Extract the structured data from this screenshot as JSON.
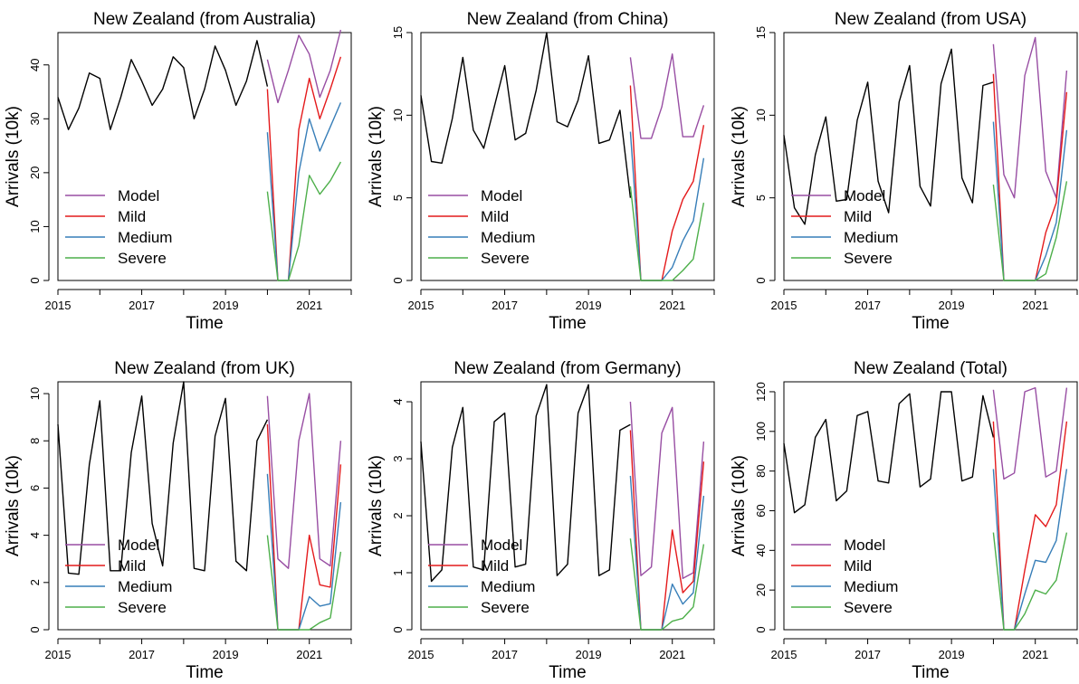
{
  "chart_data": [
    {
      "type": "line",
      "title": "New Zealand (from Australia)",
      "xlabel": "Time",
      "ylabel": "Arrivals (10k)",
      "xlim": [
        2015,
        2022
      ],
      "ylim": [
        0,
        46
      ],
      "xticks": [
        2015,
        2017,
        2019,
        2021
      ],
      "yticks": [
        0,
        10,
        20,
        30,
        40
      ],
      "legend": {
        "placement": "bottom-left",
        "entries": [
          "Model",
          "Mild",
          "Medium",
          "Severe"
        ]
      },
      "colors": {
        "history": "#000000",
        "Model": "#984EA3",
        "Mild": "#E41A1C",
        "Medium": "#377EB8",
        "Severe": "#4DAF4A"
      },
      "history": {
        "x": [
          2015.0,
          2015.25,
          2015.5,
          2015.75,
          2016.0,
          2016.25,
          2016.5,
          2016.75,
          2017.0,
          2017.25,
          2017.5,
          2017.75,
          2018.0,
          2018.25,
          2018.5,
          2018.75,
          2019.0,
          2019.25,
          2019.5,
          2019.75,
          2020.0
        ],
        "y": [
          34,
          28,
          32,
          38.5,
          37.5,
          28,
          34,
          41,
          37,
          32.5,
          35.5,
          41.5,
          39.5,
          30,
          35.5,
          43.5,
          39,
          32.5,
          37,
          44.5,
          36
        ]
      },
      "series": [
        {
          "name": "Model",
          "x": [
            2020.0,
            2020.25,
            2020.5,
            2020.75,
            2021.0,
            2021.25,
            2021.5,
            2021.75
          ],
          "y": [
            41,
            33,
            39,
            45.5,
            42,
            34,
            39,
            46.5
          ]
        },
        {
          "name": "Mild",
          "x": [
            2020.0,
            2020.25,
            2020.5,
            2020.75,
            2021.0,
            2021.25,
            2021.5,
            2021.75
          ],
          "y": [
            35.5,
            0,
            0,
            28,
            37.5,
            30,
            35.5,
            41.5
          ]
        },
        {
          "name": "Medium",
          "x": [
            2020.0,
            2020.25,
            2020.5,
            2020.75,
            2021.0,
            2021.25,
            2021.5,
            2021.75
          ],
          "y": [
            27.5,
            0,
            0,
            20,
            30,
            24,
            28.5,
            33
          ]
        },
        {
          "name": "Severe",
          "x": [
            2020.0,
            2020.25,
            2020.5,
            2020.75,
            2021.0,
            2021.25,
            2021.5,
            2021.75
          ],
          "y": [
            16.5,
            0,
            0,
            6.5,
            19.5,
            16,
            18.5,
            22
          ]
        }
      ]
    },
    {
      "type": "line",
      "title": "New Zealand (from China)",
      "xlabel": "Time",
      "ylabel": "Arrivals (10k)",
      "xlim": [
        2015,
        2022
      ],
      "ylim": [
        0,
        15
      ],
      "xticks": [
        2015,
        2017,
        2019,
        2021
      ],
      "yticks": [
        0,
        5,
        10,
        15
      ],
      "legend": {
        "placement": "bottom-left",
        "entries": [
          "Model",
          "Mild",
          "Medium",
          "Severe"
        ]
      },
      "colors": {
        "history": "#000000",
        "Model": "#984EA3",
        "Mild": "#E41A1C",
        "Medium": "#377EB8",
        "Severe": "#4DAF4A"
      },
      "history": {
        "x": [
          2015.0,
          2015.25,
          2015.5,
          2015.75,
          2016.0,
          2016.25,
          2016.5,
          2016.75,
          2017.0,
          2017.25,
          2017.5,
          2017.75,
          2018.0,
          2018.25,
          2018.5,
          2018.75,
          2019.0,
          2019.25,
          2019.5,
          2019.75,
          2020.0
        ],
        "y": [
          11.2,
          7.2,
          7.1,
          9.8,
          13.5,
          9.1,
          8.0,
          10.5,
          13.0,
          8.5,
          8.9,
          11.5,
          15.0,
          9.6,
          9.3,
          10.9,
          13.6,
          8.3,
          8.5,
          10.3,
          5.0
        ]
      },
      "series": [
        {
          "name": "Model",
          "x": [
            2020.0,
            2020.25,
            2020.5,
            2020.75,
            2021.0,
            2021.25,
            2021.5,
            2021.75
          ],
          "y": [
            13.5,
            8.6,
            8.6,
            10.5,
            13.7,
            8.7,
            8.7,
            10.6
          ]
        },
        {
          "name": "Mild",
          "x": [
            2020.0,
            2020.25,
            2020.5,
            2020.75,
            2021.0,
            2021.25,
            2021.5,
            2021.75
          ],
          "y": [
            11.8,
            0,
            0,
            0,
            3.0,
            4.9,
            6.0,
            9.4
          ]
        },
        {
          "name": "Medium",
          "x": [
            2020.0,
            2020.25,
            2020.5,
            2020.75,
            2021.0,
            2021.25,
            2021.5,
            2021.75
          ],
          "y": [
            9.0,
            0,
            0,
            0,
            0.8,
            2.4,
            3.6,
            7.4
          ]
        },
        {
          "name": "Severe",
          "x": [
            2020.0,
            2020.25,
            2020.5,
            2020.75,
            2021.0,
            2021.25,
            2021.5,
            2021.75
          ],
          "y": [
            5.7,
            0,
            0,
            0,
            0,
            0.6,
            1.3,
            4.7
          ]
        }
      ]
    },
    {
      "type": "line",
      "title": "New Zealand (from USA)",
      "xlabel": "Time",
      "ylabel": "Arrivals (10k)",
      "xlim": [
        2015,
        2022
      ],
      "ylim": [
        0,
        15
      ],
      "xticks": [
        2015,
        2017,
        2019,
        2021
      ],
      "yticks": [
        0,
        5,
        10,
        15
      ],
      "legend": {
        "placement": "bottom-left",
        "entries": [
          "Model",
          "Mild",
          "Medium",
          "Severe"
        ]
      },
      "colors": {
        "history": "#000000",
        "Model": "#984EA3",
        "Mild": "#E41A1C",
        "Medium": "#377EB8",
        "Severe": "#4DAF4A"
      },
      "history": {
        "x": [
          2015.0,
          2015.25,
          2015.5,
          2015.75,
          2016.0,
          2016.25,
          2016.5,
          2016.75,
          2017.0,
          2017.25,
          2017.5,
          2017.75,
          2018.0,
          2018.25,
          2018.5,
          2018.75,
          2019.0,
          2019.25,
          2019.5,
          2019.75,
          2020.0
        ],
        "y": [
          8.8,
          4.4,
          3.4,
          7.6,
          9.9,
          4.8,
          4.9,
          9.7,
          12.0,
          6.0,
          4.1,
          10.8,
          13.0,
          5.7,
          4.5,
          11.9,
          14.0,
          6.2,
          4.7,
          11.8,
          12.0
        ]
      },
      "series": [
        {
          "name": "Model",
          "x": [
            2020.0,
            2020.25,
            2020.5,
            2020.75,
            2021.0,
            2021.25,
            2021.5,
            2021.75
          ],
          "y": [
            14.3,
            6.4,
            5.0,
            12.4,
            14.7,
            6.6,
            5.0,
            12.7
          ]
        },
        {
          "name": "Mild",
          "x": [
            2020.0,
            2020.25,
            2020.5,
            2020.75,
            2021.0,
            2021.25,
            2021.5,
            2021.75
          ],
          "y": [
            12.5,
            0,
            0,
            0,
            0,
            2.9,
            4.7,
            11.4
          ]
        },
        {
          "name": "Medium",
          "x": [
            2020.0,
            2020.25,
            2020.5,
            2020.75,
            2021.0,
            2021.25,
            2021.5,
            2021.75
          ],
          "y": [
            9.6,
            0,
            0,
            0,
            0,
            1.5,
            3.5,
            9.1
          ]
        },
        {
          "name": "Severe",
          "x": [
            2020.0,
            2020.25,
            2020.5,
            2020.75,
            2021.0,
            2021.25,
            2021.5,
            2021.75
          ],
          "y": [
            5.8,
            0,
            0,
            0,
            0,
            0.4,
            2.6,
            6.0
          ]
        }
      ]
    },
    {
      "type": "line",
      "title": "New Zealand (from UK)",
      "xlabel": "Time",
      "ylabel": "Arrivals (10k)",
      "xlim": [
        2015,
        2022
      ],
      "ylim": [
        0,
        10.5
      ],
      "xticks": [
        2015,
        2017,
        2019,
        2021
      ],
      "yticks": [
        0,
        2,
        4,
        6,
        8,
        10
      ],
      "legend": {
        "placement": "bottom-left",
        "entries": [
          "Model",
          "Mild",
          "Medium",
          "Severe"
        ]
      },
      "colors": {
        "history": "#000000",
        "Model": "#984EA3",
        "Mild": "#E41A1C",
        "Medium": "#377EB8",
        "Severe": "#4DAF4A"
      },
      "history": {
        "x": [
          2015.0,
          2015.25,
          2015.5,
          2015.75,
          2016.0,
          2016.25,
          2016.5,
          2016.75,
          2017.0,
          2017.25,
          2017.5,
          2017.75,
          2018.0,
          2018.25,
          2018.5,
          2018.75,
          2019.0,
          2019.25,
          2019.5,
          2019.75,
          2020.0
        ],
        "y": [
          8.7,
          2.4,
          2.35,
          7.0,
          9.7,
          2.5,
          2.5,
          7.5,
          9.9,
          4.5,
          2.7,
          7.9,
          10.5,
          2.6,
          2.5,
          8.2,
          9.8,
          2.9,
          2.5,
          8.0,
          8.9
        ]
      },
      "series": [
        {
          "name": "Model",
          "x": [
            2020.0,
            2020.25,
            2020.5,
            2020.75,
            2021.0,
            2021.25,
            2021.5,
            2021.75
          ],
          "y": [
            9.9,
            3.0,
            2.6,
            8.0,
            10.0,
            3.0,
            2.7,
            8.0
          ]
        },
        {
          "name": "Mild",
          "x": [
            2020.0,
            2020.25,
            2020.5,
            2020.75,
            2021.0,
            2021.25,
            2021.5,
            2021.75
          ],
          "y": [
            8.7,
            0,
            0,
            0,
            4.0,
            1.9,
            1.8,
            7.0
          ]
        },
        {
          "name": "Medium",
          "x": [
            2020.0,
            2020.25,
            2020.5,
            2020.75,
            2021.0,
            2021.25,
            2021.5,
            2021.75
          ],
          "y": [
            6.6,
            0,
            0,
            0,
            1.4,
            1.0,
            1.1,
            5.4
          ]
        },
        {
          "name": "Severe",
          "x": [
            2020.0,
            2020.25,
            2020.5,
            2020.75,
            2021.0,
            2021.25,
            2021.5,
            2021.75
          ],
          "y": [
            4.0,
            0,
            0,
            0,
            0,
            0.3,
            0.5,
            3.3
          ]
        }
      ]
    },
    {
      "type": "line",
      "title": "New Zealand (from Germany)",
      "xlabel": "Time",
      "ylabel": "Arrivals (10k)",
      "xlim": [
        2015,
        2022
      ],
      "ylim": [
        0,
        4.35
      ],
      "xticks": [
        2015,
        2017,
        2019,
        2021
      ],
      "yticks": [
        0,
        1,
        2,
        3,
        4
      ],
      "legend": {
        "placement": "bottom-left",
        "entries": [
          "Model",
          "Mild",
          "Medium",
          "Severe"
        ]
      },
      "colors": {
        "history": "#000000",
        "Model": "#984EA3",
        "Mild": "#E41A1C",
        "Medium": "#377EB8",
        "Severe": "#4DAF4A"
      },
      "history": {
        "x": [
          2015.0,
          2015.25,
          2015.5,
          2015.75,
          2016.0,
          2016.25,
          2016.5,
          2016.75,
          2017.0,
          2017.25,
          2017.5,
          2017.75,
          2018.0,
          2018.25,
          2018.5,
          2018.75,
          2019.0,
          2019.25,
          2019.5,
          2019.75,
          2020.0
        ],
        "y": [
          3.3,
          0.85,
          1.05,
          3.2,
          3.9,
          1.1,
          1.05,
          3.65,
          3.8,
          1.1,
          1.15,
          3.75,
          4.3,
          0.95,
          1.15,
          3.8,
          4.3,
          0.95,
          1.05,
          3.5,
          3.6
        ]
      },
      "series": [
        {
          "name": "Model",
          "x": [
            2020.0,
            2020.25,
            2020.5,
            2020.75,
            2021.0,
            2021.25,
            2021.5,
            2021.75
          ],
          "y": [
            4.0,
            0.95,
            1.1,
            3.45,
            3.9,
            0.9,
            1.0,
            3.3
          ]
        },
        {
          "name": "Mild",
          "x": [
            2020.0,
            2020.25,
            2020.5,
            2020.75,
            2021.0,
            2021.25,
            2021.5,
            2021.75
          ],
          "y": [
            3.5,
            0,
            0,
            0,
            1.75,
            0.65,
            0.85,
            2.95
          ]
        },
        {
          "name": "Medium",
          "x": [
            2020.0,
            2020.25,
            2020.5,
            2020.75,
            2021.0,
            2021.25,
            2021.5,
            2021.75
          ],
          "y": [
            2.7,
            0,
            0,
            0,
            0.8,
            0.45,
            0.65,
            2.35
          ]
        },
        {
          "name": "Severe",
          "x": [
            2020.0,
            2020.25,
            2020.5,
            2020.75,
            2021.0,
            2021.25,
            2021.5,
            2021.75
          ],
          "y": [
            1.6,
            0,
            0,
            0,
            0.15,
            0.2,
            0.4,
            1.5
          ]
        }
      ]
    },
    {
      "type": "line",
      "title": "New Zealand (Total)",
      "xlabel": "Time",
      "ylabel": "Arrivals (10k)",
      "xlim": [
        2015,
        2022
      ],
      "ylim": [
        0,
        125
      ],
      "xticks": [
        2015,
        2017,
        2019,
        2021
      ],
      "yticks": [
        0,
        20,
        40,
        60,
        80,
        100,
        120
      ],
      "legend": {
        "placement": "bottom-left",
        "entries": [
          "Model",
          "Mild",
          "Medium",
          "Severe"
        ]
      },
      "colors": {
        "history": "#000000",
        "Model": "#984EA3",
        "Mild": "#E41A1C",
        "Medium": "#377EB8",
        "Severe": "#4DAF4A"
      },
      "history": {
        "x": [
          2015.0,
          2015.25,
          2015.5,
          2015.75,
          2016.0,
          2016.25,
          2016.5,
          2016.75,
          2017.0,
          2017.25,
          2017.5,
          2017.75,
          2018.0,
          2018.25,
          2018.5,
          2018.75,
          2019.0,
          2019.25,
          2019.5,
          2019.75,
          2020.0
        ],
        "y": [
          94,
          59,
          63,
          97,
          106,
          65,
          70,
          108,
          110,
          75,
          74,
          114,
          119,
          72,
          76,
          120,
          120,
          75,
          77,
          118,
          97
        ]
      },
      "series": [
        {
          "name": "Model",
          "x": [
            2020.0,
            2020.25,
            2020.5,
            2020.75,
            2021.0,
            2021.25,
            2021.5,
            2021.75
          ],
          "y": [
            121,
            76,
            79,
            120,
            122,
            77,
            80,
            122
          ]
        },
        {
          "name": "Mild",
          "x": [
            2020.0,
            2020.25,
            2020.5,
            2020.75,
            2021.0,
            2021.25,
            2021.5,
            2021.75
          ],
          "y": [
            105,
            0,
            0,
            30,
            58,
            52,
            63,
            105
          ]
        },
        {
          "name": "Medium",
          "x": [
            2020.0,
            2020.25,
            2020.5,
            2020.75,
            2021.0,
            2021.25,
            2021.5,
            2021.75
          ],
          "y": [
            81,
            0,
            0,
            18,
            35,
            34,
            45,
            81
          ]
        },
        {
          "name": "Severe",
          "x": [
            2020.0,
            2020.25,
            2020.5,
            2020.75,
            2021.0,
            2021.25,
            2021.5,
            2021.75
          ],
          "y": [
            49,
            0,
            0,
            8,
            20,
            18,
            25,
            49
          ]
        }
      ]
    }
  ]
}
